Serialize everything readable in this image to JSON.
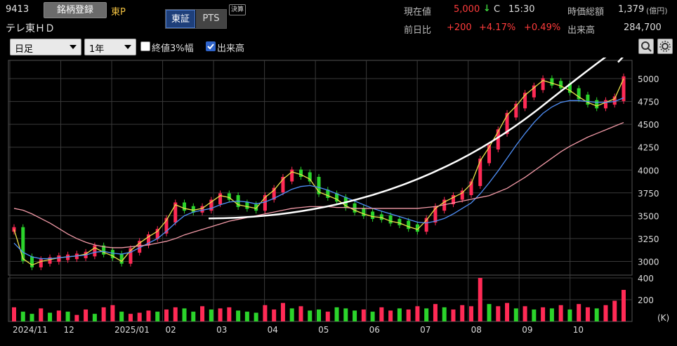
{
  "header": {
    "code": "9413",
    "register_label": "銘柄登録",
    "market": "東P",
    "company": "テレ東ＨＤ",
    "tab_tse": "東証",
    "tab_pts": "PTS",
    "kessan_badge": "決算",
    "current_price_label": "現在値",
    "current_price": "5,000",
    "price_arrow": "↓",
    "price_flag": "C",
    "price_time": "15:30",
    "market_cap_label": "時価総額",
    "market_cap": "1,379",
    "market_cap_unit": "(億円)",
    "prev_day_label": "前日比",
    "change": "+200",
    "change_pct": "+4.17%",
    "change_extra": "+0.49%",
    "volume_label": "出来高",
    "volume": "284,700"
  },
  "controls": {
    "period_select": "日足",
    "range_select": "1年",
    "check_close3_label": "終値3%幅",
    "check_close3": false,
    "check_volume_label": "出来高",
    "check_volume": true,
    "zoom_icon": "magnifier-icon",
    "settings_icon": "gear-icon"
  },
  "colors": {
    "up": "#ff2a55",
    "down": "#2bd42b",
    "ma_short": "#e8e04a",
    "ma_mid": "#4f8ff7",
    "ma_long": "#f29aa7",
    "trend": "#ffffff",
    "grid": "#3a3a3a"
  },
  "chart_data": [
    {
      "type": "line",
      "ylim": [
        2850,
        5200
      ],
      "y_ticks": [
        "5000",
        "4750",
        "4500",
        "4250",
        "4000",
        "3750",
        "3500",
        "3250",
        "3000"
      ],
      "x_labels": [
        "2024/11",
        "12",
        "2025/01",
        "02",
        "03",
        "04",
        "05",
        "06",
        "07",
        "08",
        "09",
        "10"
      ],
      "series": [
        {
          "values": [
            3350,
            3030,
            2960,
            3000,
            3020,
            3040,
            3050,
            3060,
            3080,
            3150,
            3100,
            3060,
            3000,
            3120,
            3200,
            3270,
            3330,
            3450,
            3620,
            3580,
            3560,
            3580,
            3650,
            3720,
            3700,
            3620,
            3600,
            3580,
            3700,
            3780,
            3900,
            3980,
            3950,
            3900,
            3760,
            3720,
            3680,
            3610,
            3560,
            3520,
            3490,
            3480,
            3440,
            3420,
            3380,
            3350,
            3450,
            3580,
            3650,
            3700,
            3750,
            3850,
            4100,
            4250,
            4420,
            4600,
            4700,
            4820,
            4900,
            4980,
            4950,
            4920,
            4870,
            4800,
            4740,
            4700,
            4740,
            4780,
            5000
          ]
        },
        {
          "values": [
            3200,
            3100,
            3050,
            3030,
            3030,
            3040,
            3050,
            3060,
            3070,
            3100,
            3110,
            3090,
            3080,
            3100,
            3150,
            3200,
            3250,
            3330,
            3420,
            3500,
            3540,
            3560,
            3580,
            3620,
            3650,
            3660,
            3650,
            3630,
            3650,
            3690,
            3740,
            3790,
            3820,
            3830,
            3810,
            3780,
            3740,
            3700,
            3660,
            3620,
            3580,
            3550,
            3520,
            3490,
            3460,
            3430,
            3420,
            3440,
            3470,
            3520,
            3580,
            3640,
            3740,
            3860,
            3990,
            4130,
            4270,
            4400,
            4520,
            4620,
            4690,
            4740,
            4760,
            4760,
            4750,
            4740,
            4740,
            4750,
            4790
          ]
        },
        {
          "values": [
            3580,
            3560,
            3520,
            3470,
            3420,
            3360,
            3300,
            3250,
            3210,
            3180,
            3160,
            3150,
            3150,
            3160,
            3170,
            3180,
            3200,
            3220,
            3250,
            3290,
            3320,
            3350,
            3380,
            3410,
            3440,
            3460,
            3480,
            3500,
            3520,
            3540,
            3560,
            3580,
            3590,
            3600,
            3600,
            3600,
            3590,
            3590,
            3580,
            3580,
            3580,
            3580,
            3580,
            3580,
            3580,
            3580,
            3590,
            3600,
            3620,
            3640,
            3660,
            3680,
            3700,
            3720,
            3760,
            3800,
            3860,
            3920,
            3990,
            4060,
            4130,
            4200,
            4260,
            4310,
            4360,
            4400,
            4440,
            4480,
            4520
          ]
        }
      ]
    },
    {
      "type": "bar",
      "ylim": [
        0,
        400
      ],
      "y_ticks": [
        "400",
        "200"
      ],
      "unit_label": "(K)",
      "values": [
        130,
        90,
        70,
        120,
        80,
        100,
        90,
        60,
        110,
        70,
        130,
        150,
        90,
        70,
        80,
        100,
        90,
        110,
        130,
        120,
        90,
        140,
        110,
        120,
        130,
        100,
        90,
        80,
        150,
        110,
        170,
        120,
        140,
        100,
        110,
        90,
        130,
        120,
        100,
        110,
        90,
        130,
        100,
        120,
        110,
        140,
        120,
        160,
        130,
        110,
        150,
        140,
        400,
        160,
        140,
        170,
        120,
        140,
        110,
        130,
        120,
        150,
        110,
        160,
        130,
        120,
        150,
        190,
        290
      ],
      "up_flags": [
        1,
        0,
        0,
        1,
        0,
        1,
        0,
        1,
        1,
        0,
        1,
        1,
        0,
        1,
        1,
        1,
        0,
        1,
        1,
        0,
        0,
        1,
        0,
        1,
        1,
        0,
        0,
        0,
        1,
        1,
        1,
        0,
        1,
        0,
        0,
        1,
        0,
        0,
        0,
        1,
        0,
        1,
        1,
        0,
        1,
        1,
        0,
        1,
        0,
        1,
        1,
        1,
        1,
        0,
        1,
        1,
        0,
        1,
        0,
        1,
        0,
        1,
        0,
        1,
        1,
        0,
        1,
        1,
        1
      ]
    }
  ]
}
